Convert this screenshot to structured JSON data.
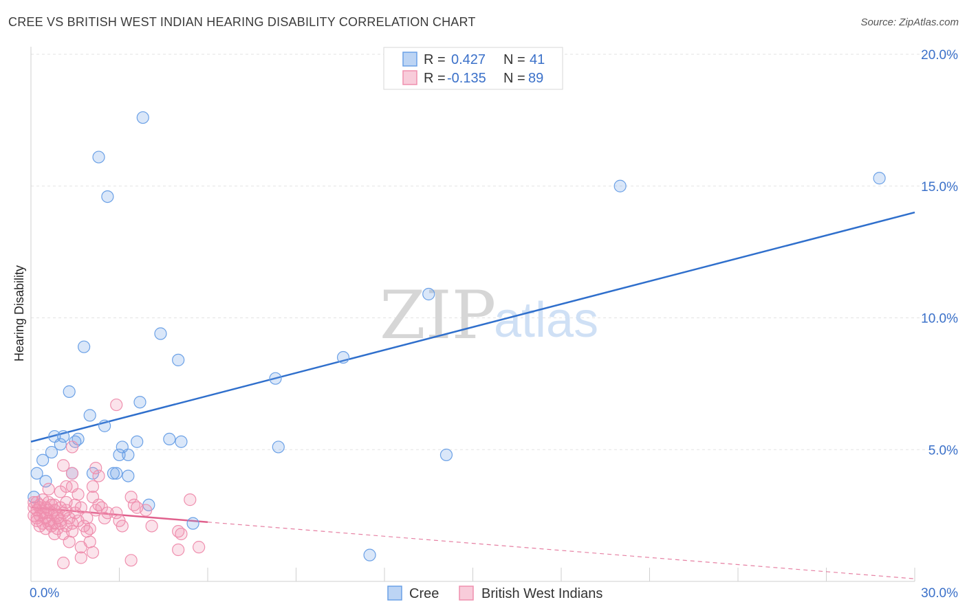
{
  "title": "CREE VS BRITISH WEST INDIAN HEARING DISABILITY CORRELATION CHART",
  "source": "Source: ZipAtlas.com",
  "watermark": {
    "zip": "ZIP",
    "atlas": "atlas"
  },
  "colors": {
    "cree": "#6aa0e6",
    "cree_fill": "rgba(106,160,230,0.25)",
    "cree_line": "#2f6fcc",
    "bwi": "#ef8fae",
    "bwi_fill": "rgba(239,143,174,0.25)",
    "bwi_line": "#e0608c",
    "tick_text": "#3a70c9",
    "grid": "#e3e3e3"
  },
  "legend_top": {
    "rows": [
      {
        "r_label": "R =",
        "r_value": "0.427",
        "n_label": "N =",
        "n_value": "41"
      },
      {
        "r_label": "R =",
        "r_value": "-0.135",
        "n_label": "N =",
        "n_value": "89"
      }
    ]
  },
  "legend_bottom": [
    "Cree",
    "British West Indians"
  ],
  "chart_data": {
    "type": "scatter",
    "title": "CREE VS BRITISH WEST INDIAN HEARING DISABILITY CORRELATION CHART",
    "xlabel": "",
    "ylabel": "Hearing Disability",
    "xlim": [
      0,
      30
    ],
    "ylim": [
      0,
      20
    ],
    "x_tick_labels": [
      "0.0%",
      "30.0%"
    ],
    "y_tick_labels": [
      "5.0%",
      "10.0%",
      "15.0%",
      "20.0%"
    ],
    "y_ticks": [
      5,
      10,
      15,
      20
    ],
    "grid": true,
    "legend_position": "top-center",
    "series": [
      {
        "name": "Cree",
        "R": 0.427,
        "N": 41,
        "trend": {
          "x": [
            0,
            30
          ],
          "y": [
            5.3,
            14.0
          ]
        },
        "points": [
          [
            3.8,
            17.6
          ],
          [
            2.3,
            16.1
          ],
          [
            2.6,
            14.6
          ],
          [
            20.0,
            15.0
          ],
          [
            28.8,
            15.3
          ],
          [
            13.5,
            10.9
          ],
          [
            4.4,
            9.4
          ],
          [
            1.8,
            8.9
          ],
          [
            5.0,
            8.4
          ],
          [
            10.6,
            8.5
          ],
          [
            8.3,
            7.7
          ],
          [
            1.3,
            7.2
          ],
          [
            3.7,
            6.8
          ],
          [
            2.0,
            6.3
          ],
          [
            2.5,
            5.9
          ],
          [
            0.8,
            5.5
          ],
          [
            1.1,
            5.5
          ],
          [
            1.6,
            5.4
          ],
          [
            4.7,
            5.4
          ],
          [
            5.1,
            5.3
          ],
          [
            3.6,
            5.3
          ],
          [
            3.1,
            5.1
          ],
          [
            1.0,
            5.2
          ],
          [
            1.5,
            5.3
          ],
          [
            8.4,
            5.1
          ],
          [
            0.7,
            4.9
          ],
          [
            3.0,
            4.8
          ],
          [
            3.3,
            4.8
          ],
          [
            14.1,
            4.8
          ],
          [
            0.4,
            4.6
          ],
          [
            0.2,
            4.1
          ],
          [
            1.4,
            4.1
          ],
          [
            2.1,
            4.1
          ],
          [
            2.8,
            4.1
          ],
          [
            3.3,
            4.0
          ],
          [
            0.5,
            3.8
          ],
          [
            0.1,
            3.2
          ],
          [
            4.0,
            2.9
          ],
          [
            5.5,
            2.2
          ],
          [
            11.5,
            1.0
          ],
          [
            2.9,
            4.1
          ]
        ]
      },
      {
        "name": "British West Indians",
        "R": -0.135,
        "N": 89,
        "trend": {
          "x": [
            0,
            6
          ],
          "y": [
            2.8,
            2.25
          ],
          "dashed_to": [
            30,
            0.1
          ]
        },
        "points": [
          [
            2.9,
            6.7
          ],
          [
            1.4,
            5.1
          ],
          [
            1.1,
            4.4
          ],
          [
            1.4,
            4.1
          ],
          [
            2.2,
            4.3
          ],
          [
            2.3,
            4.0
          ],
          [
            1.2,
            3.6
          ],
          [
            1.4,
            3.6
          ],
          [
            2.1,
            3.6
          ],
          [
            0.6,
            3.5
          ],
          [
            1.0,
            3.4
          ],
          [
            1.6,
            3.3
          ],
          [
            2.1,
            3.2
          ],
          [
            3.4,
            3.2
          ],
          [
            0.2,
            3.0
          ],
          [
            0.6,
            3.0
          ],
          [
            0.8,
            2.9
          ],
          [
            1.5,
            2.9
          ],
          [
            2.3,
            2.9
          ],
          [
            3.5,
            2.9
          ],
          [
            5.4,
            3.1
          ],
          [
            0.1,
            2.8
          ],
          [
            0.3,
            2.8
          ],
          [
            0.5,
            2.8
          ],
          [
            1.0,
            2.8
          ],
          [
            1.2,
            2.7
          ],
          [
            2.4,
            2.8
          ],
          [
            3.9,
            2.7
          ],
          [
            0.2,
            2.7
          ],
          [
            0.4,
            2.6
          ],
          [
            0.7,
            2.6
          ],
          [
            1.1,
            2.6
          ],
          [
            2.2,
            2.7
          ],
          [
            2.9,
            2.6
          ],
          [
            0.1,
            2.5
          ],
          [
            0.3,
            2.5
          ],
          [
            0.5,
            2.4
          ],
          [
            0.9,
            2.4
          ],
          [
            1.3,
            2.4
          ],
          [
            1.9,
            2.4
          ],
          [
            2.5,
            2.4
          ],
          [
            0.2,
            2.3
          ],
          [
            0.6,
            2.3
          ],
          [
            0.8,
            2.2
          ],
          [
            1.0,
            2.2
          ],
          [
            1.6,
            2.3
          ],
          [
            3.0,
            2.3
          ],
          [
            0.4,
            2.2
          ],
          [
            0.7,
            2.1
          ],
          [
            1.2,
            2.1
          ],
          [
            1.8,
            2.1
          ],
          [
            3.1,
            2.1
          ],
          [
            4.1,
            2.1
          ],
          [
            0.5,
            2.0
          ],
          [
            0.9,
            2.0
          ],
          [
            1.4,
            1.9
          ],
          [
            1.9,
            1.9
          ],
          [
            5.0,
            1.9
          ],
          [
            0.8,
            1.8
          ],
          [
            1.1,
            1.8
          ],
          [
            5.1,
            1.8
          ],
          [
            1.3,
            1.5
          ],
          [
            1.7,
            1.3
          ],
          [
            2.0,
            1.5
          ],
          [
            5.0,
            1.2
          ],
          [
            5.7,
            1.3
          ],
          [
            2.1,
            1.1
          ],
          [
            1.7,
            0.9
          ],
          [
            3.4,
            0.8
          ],
          [
            1.1,
            0.7
          ],
          [
            0.3,
            2.9
          ],
          [
            0.6,
            2.7
          ],
          [
            1.5,
            2.6
          ],
          [
            0.2,
            2.4
          ],
          [
            1.7,
            2.8
          ],
          [
            0.4,
            3.1
          ],
          [
            0.9,
            2.5
          ],
          [
            2.6,
            2.6
          ],
          [
            1.2,
            3.0
          ],
          [
            0.7,
            2.9
          ],
          [
            0.3,
            2.1
          ],
          [
            1.0,
            2.3
          ],
          [
            2.0,
            2.0
          ],
          [
            0.5,
            2.6
          ],
          [
            1.4,
            2.2
          ],
          [
            0.1,
            3.0
          ],
          [
            0.8,
            2.7
          ],
          [
            3.6,
            2.8
          ],
          [
            0.6,
            2.2
          ]
        ]
      }
    ]
  }
}
